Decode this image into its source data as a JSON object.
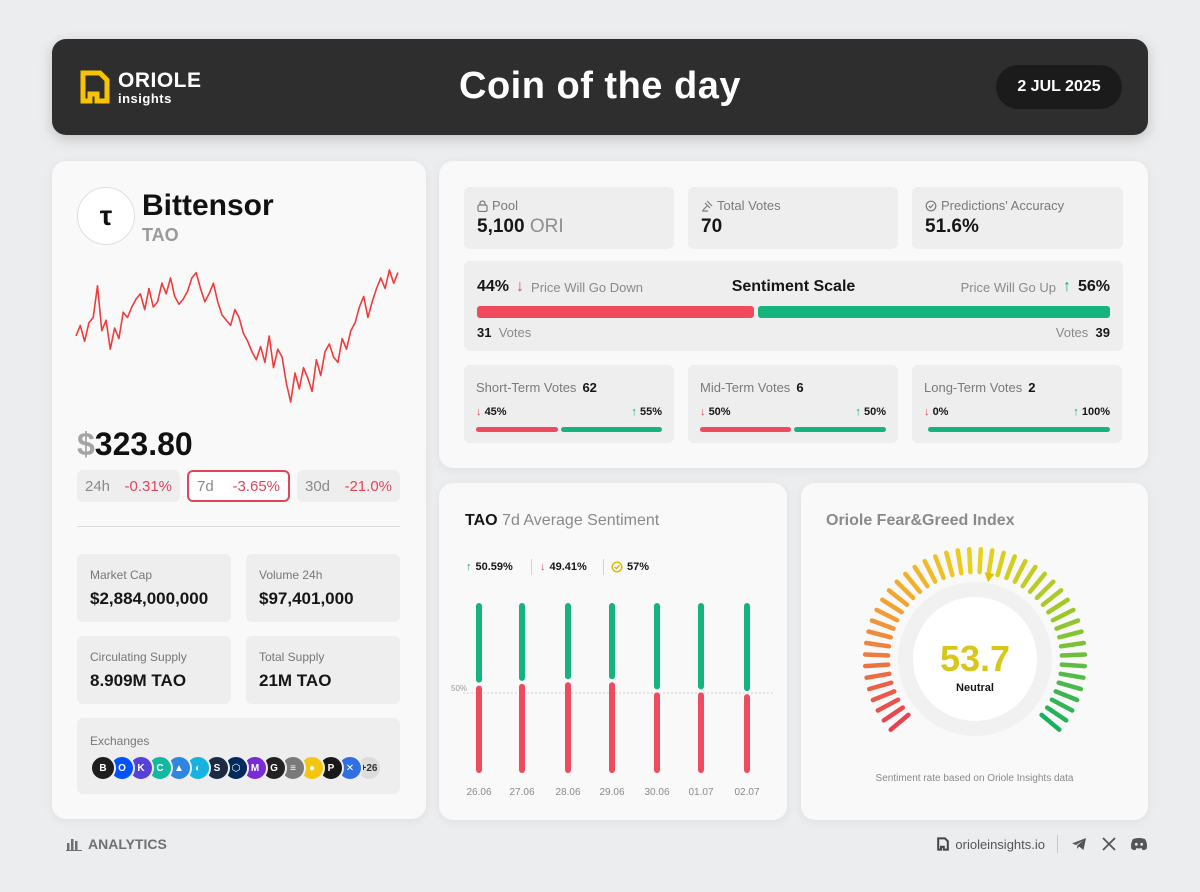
{
  "header": {
    "brand": "ORIOLE",
    "brand_sub": "insights",
    "title": "Coin of the day",
    "date": "2 JUL 2025"
  },
  "coin": {
    "logo_glyph": "τ",
    "name": "Bittensor",
    "ticker": "TAO",
    "price_symbol": "$",
    "price": "323.80",
    "sparkline": [
      60,
      68,
      56,
      70,
      74,
      98,
      64,
      72,
      50,
      66,
      58,
      78,
      74,
      82,
      88,
      92,
      80,
      96,
      82,
      86,
      100,
      92,
      104,
      90,
      84,
      88,
      94,
      104,
      108,
      96,
      86,
      92,
      100,
      86,
      76,
      72,
      68,
      80,
      74,
      62,
      56,
      48,
      42,
      52,
      40,
      60,
      36,
      50,
      44,
      24,
      10,
      32,
      20,
      36,
      28,
      18,
      42,
      30,
      48,
      54,
      44,
      40,
      58,
      50,
      64,
      70,
      82,
      90,
      74,
      86,
      96,
      104,
      96,
      110,
      100,
      108
    ],
    "changes": [
      {
        "label": "24h",
        "value": "-0.31%"
      },
      {
        "label": "7d",
        "value": "-3.65%"
      },
      {
        "label": "30d",
        "value": "-21.0%"
      }
    ],
    "stats": {
      "market_cap": {
        "label": "Market Cap",
        "value": "$2,884,000,000"
      },
      "volume": {
        "label": "Volume 24h",
        "value": "$97,401,000"
      },
      "circulating": {
        "label": "Circulating Supply",
        "value": "8.909M TAO"
      },
      "total": {
        "label": "Total Supply",
        "value": "21M TAO"
      }
    },
    "exchanges": {
      "label": "Exchanges",
      "icons": [
        {
          "glyph": "B",
          "color": "#1e1e1e"
        },
        {
          "glyph": "O",
          "color": "#0052ff"
        },
        {
          "glyph": "K",
          "color": "#5741d9"
        },
        {
          "glyph": "C",
          "color": "#11b9a1"
        },
        {
          "glyph": "▲",
          "color": "#2e86de"
        },
        {
          "glyph": "◐",
          "color": "#17b2e0"
        },
        {
          "glyph": "S",
          "color": "#1c2a44"
        },
        {
          "glyph": "⬡",
          "color": "#00295c"
        },
        {
          "glyph": "M",
          "color": "#7b2bd6"
        },
        {
          "glyph": "G",
          "color": "#222222"
        },
        {
          "glyph": "≡",
          "color": "#7a7a7a"
        },
        {
          "glyph": "●",
          "color": "#f3c611"
        },
        {
          "glyph": "P",
          "color": "#1a1a1a"
        },
        {
          "glyph": "✕",
          "color": "#2f6fe0"
        }
      ],
      "more": "+26"
    }
  },
  "metrics": {
    "pool": {
      "label": "Pool",
      "value": "5,100",
      "unit": "ORI"
    },
    "votes": {
      "label": "Total Votes",
      "value": "70"
    },
    "accuracy": {
      "label": "Predictions' Accuracy",
      "value": "51.6%"
    }
  },
  "sentiment": {
    "title": "Sentiment Scale",
    "down_pct": "44%",
    "down_label": "Price Will Go Down",
    "up_pct": "56%",
    "up_label": "Price Will Go Up",
    "down_votes": "31",
    "up_votes": "39",
    "votes_word": "Votes",
    "down_share": 0.44
  },
  "terms": [
    {
      "title": "Short-Term Votes",
      "count": "62",
      "down": "45%",
      "up": "55%",
      "down_share": 0.45
    },
    {
      "title": "Mid-Term Votes",
      "count": "6",
      "down": "50%",
      "up": "50%",
      "down_share": 0.5
    },
    {
      "title": "Long-Term Votes",
      "count": "2",
      "down": "0%",
      "up": "100%",
      "down_share": 0.0
    }
  ],
  "weekly": {
    "title_coin": "TAO",
    "title_rest": "7d Average Sentiment",
    "legend_up": "50.59%",
    "legend_down": "49.41%",
    "legend_acc": "57%",
    "midline_label": "50%"
  },
  "chart_data": {
    "type": "bar",
    "title": "TAO 7d Average Sentiment",
    "categories": [
      "26.06",
      "27.06",
      "28.06",
      "29.06",
      "30.06",
      "01.07",
      "02.07"
    ],
    "series": [
      {
        "name": "Up",
        "color": "#16b37e",
        "values": [
          48,
          47,
          46,
          46,
          52,
          52,
          53
        ]
      },
      {
        "name": "Down",
        "color": "#ef4a5d",
        "values": [
          52,
          53,
          54,
          54,
          48,
          48,
          47
        ]
      }
    ],
    "ylim": [
      0,
      100
    ],
    "reference_line": 50
  },
  "fear_greed": {
    "title": "Oriole Fear&Greed Index",
    "value": "53.7",
    "label": "Neutral",
    "value_num": 53.7,
    "value_color": "#d9c61a",
    "caption": "Sentiment rate based on Oriole Insights data"
  },
  "footer": {
    "section": "ANALYTICS",
    "site": "orioleinsights.io"
  }
}
